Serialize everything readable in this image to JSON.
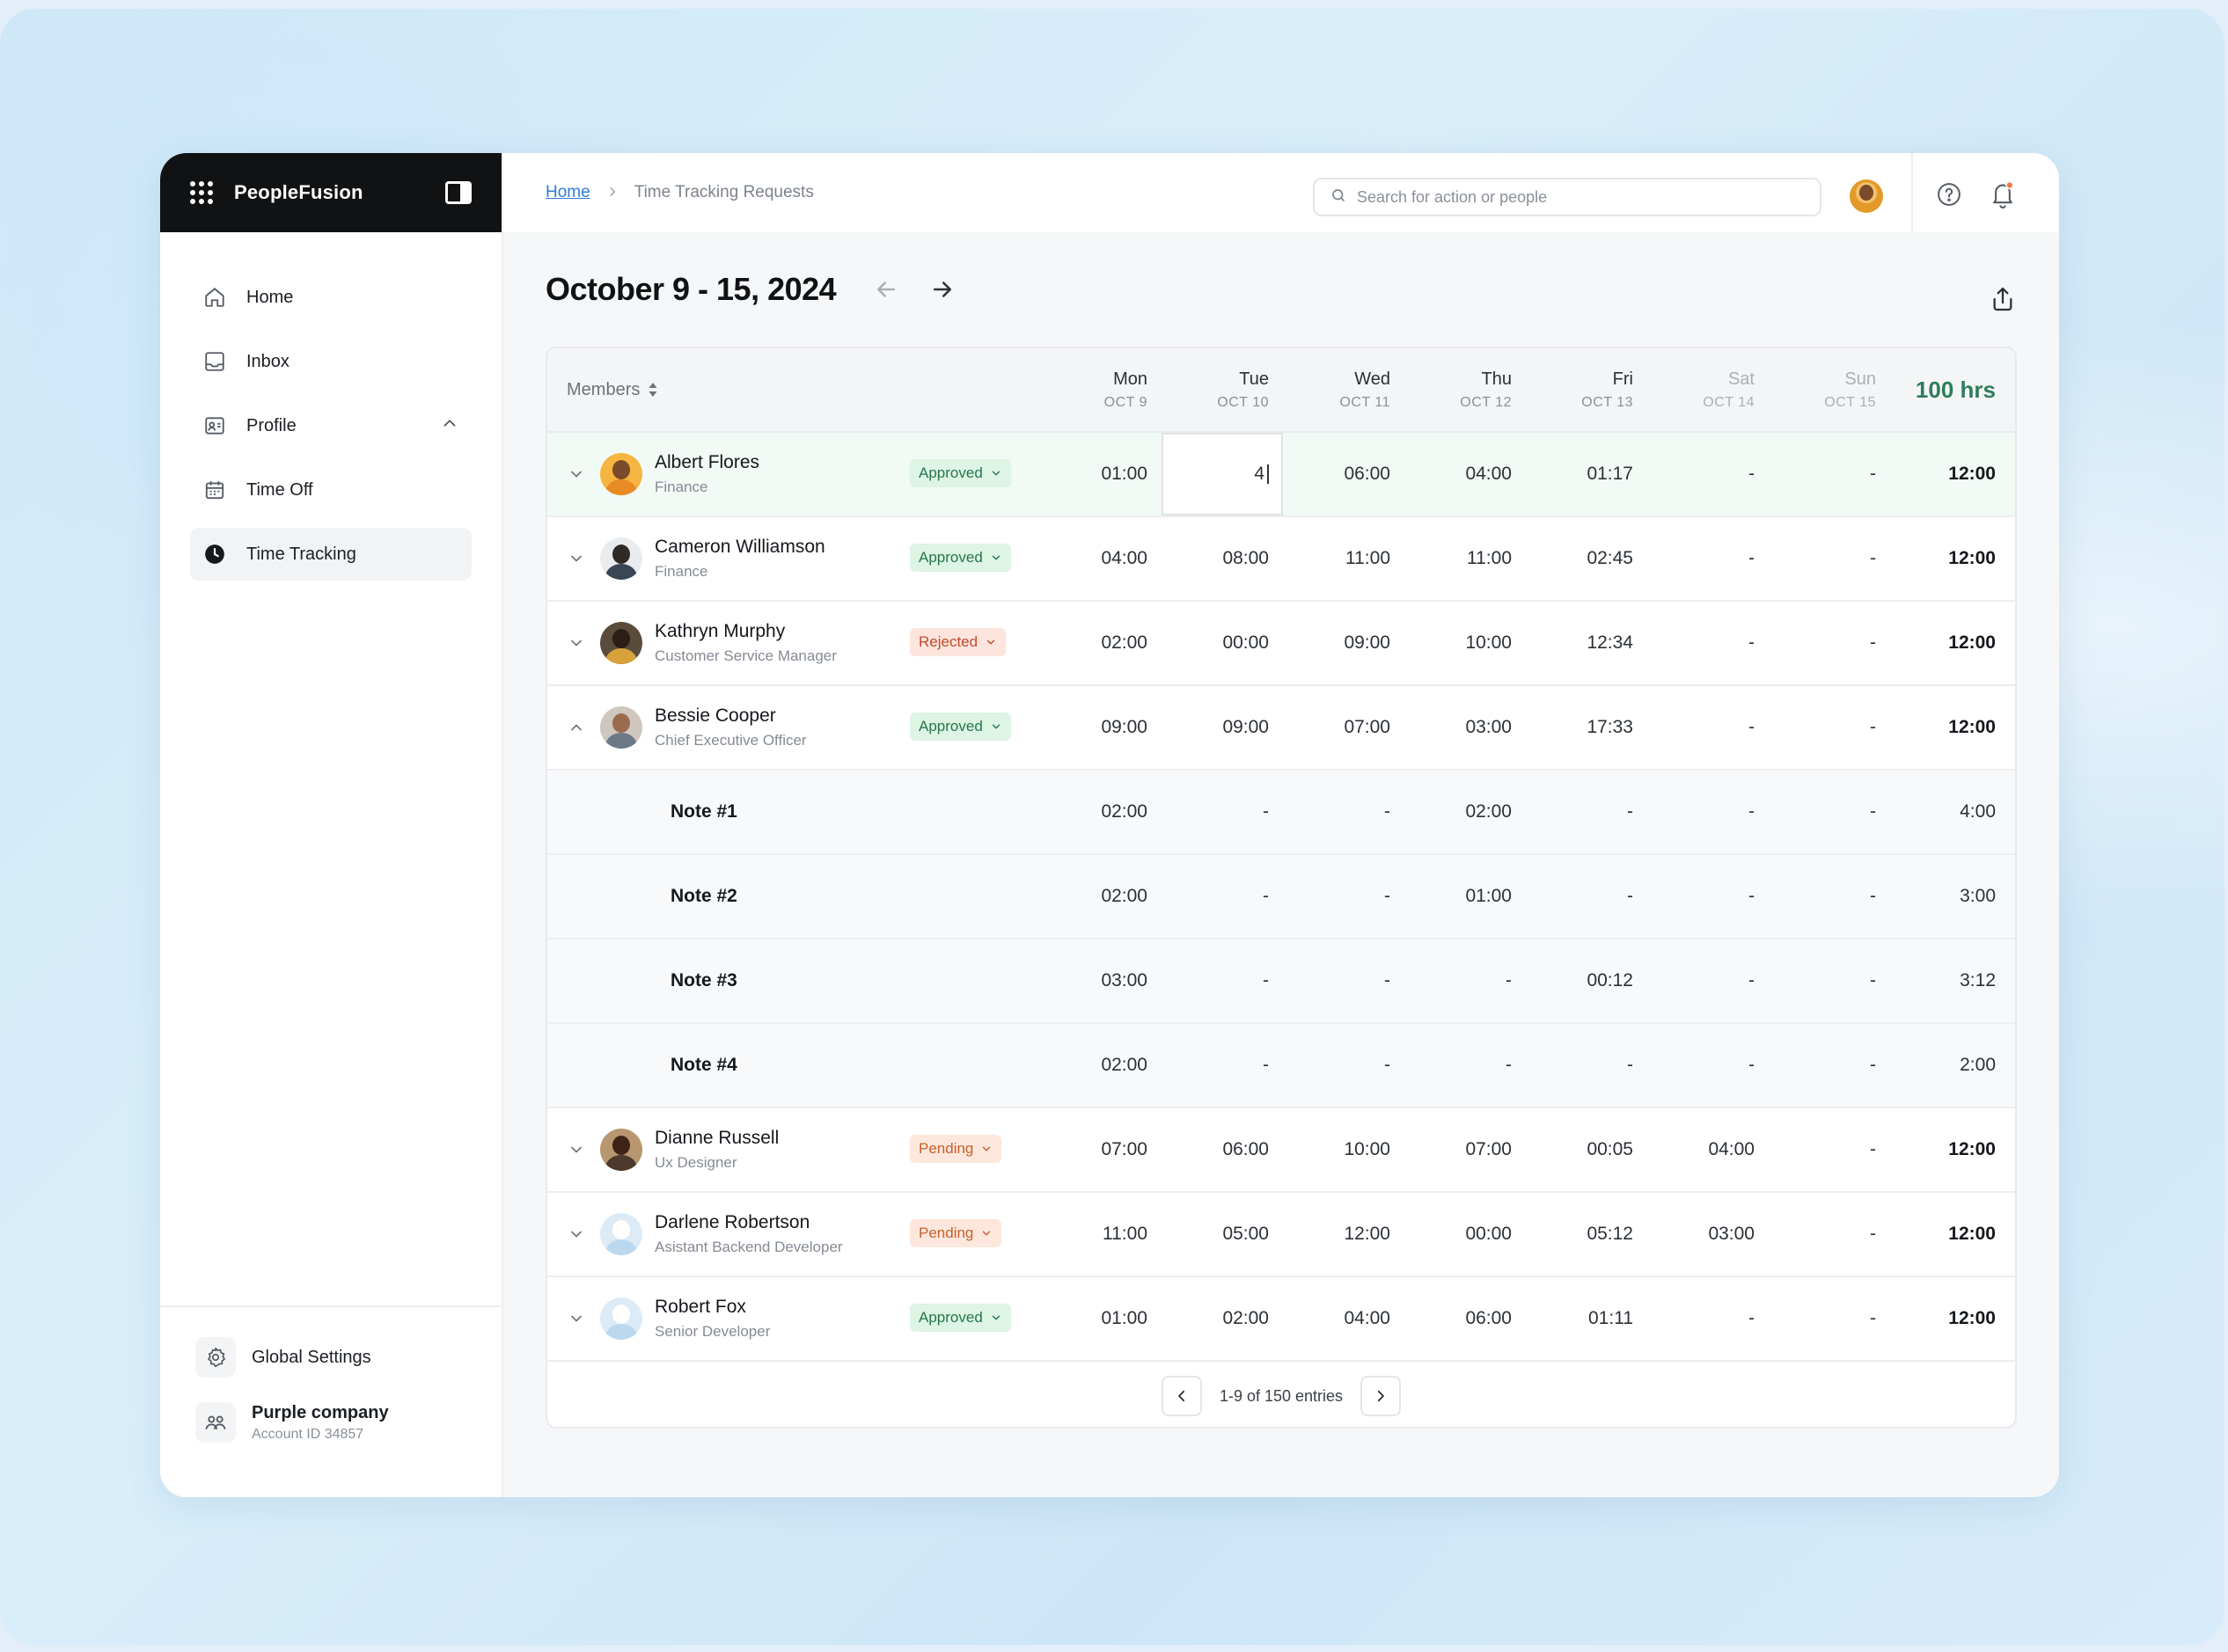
{
  "app": {
    "name": "PeopleFusion"
  },
  "sidebar": {
    "items": [
      {
        "label": "Home",
        "icon": "home-icon"
      },
      {
        "label": "Inbox",
        "icon": "inbox-icon"
      },
      {
        "label": "Profile",
        "icon": "profile-card-icon",
        "expanded": true
      },
      {
        "label": "Time Off",
        "icon": "calendar-icon"
      },
      {
        "label": "Time Tracking",
        "icon": "clock-icon",
        "active": true
      }
    ],
    "footer": {
      "settings_label": "Global Settings",
      "company_name": "Purple company",
      "account_id": "Account ID 34857"
    }
  },
  "header": {
    "breadcrumb": {
      "home": "Home",
      "current": "Time Tracking Requests"
    },
    "search_placeholder": "Search for action or people"
  },
  "page": {
    "title": "October 9 - 15, 2024"
  },
  "table": {
    "members_header": "Members",
    "total_header": "100 hrs",
    "days": [
      {
        "day": "Mon",
        "date": "OCT 9",
        "weekend": false
      },
      {
        "day": "Tue",
        "date": "OCT 10",
        "weekend": false
      },
      {
        "day": "Wed",
        "date": "OCT 11",
        "weekend": false
      },
      {
        "day": "Thu",
        "date": "OCT 12",
        "weekend": false
      },
      {
        "day": "Fri",
        "date": "OCT 13",
        "weekend": false
      },
      {
        "day": "Sat",
        "date": "OCT 14",
        "weekend": true
      },
      {
        "day": "Sun",
        "date": "OCT 15",
        "weekend": true
      }
    ],
    "rows": [
      {
        "type": "member",
        "name": "Albert Flores",
        "role": "Finance",
        "status": "Approved",
        "hours": [
          "01:00",
          "4",
          "06:00",
          "04:00",
          "01:17",
          "-",
          "-"
        ],
        "total": "12:00",
        "highlight": true,
        "editing_day": 1
      },
      {
        "type": "member",
        "name": "Cameron Williamson",
        "role": "Finance",
        "status": "Approved",
        "hours": [
          "04:00",
          "08:00",
          "11:00",
          "11:00",
          "02:45",
          "-",
          "-"
        ],
        "total": "12:00"
      },
      {
        "type": "member",
        "name": "Kathryn Murphy",
        "role": "Customer Service Manager",
        "status": "Rejected",
        "hours": [
          "02:00",
          "00:00",
          "09:00",
          "10:00",
          "12:34",
          "-",
          "-"
        ],
        "total": "12:00"
      },
      {
        "type": "member",
        "name": "Bessie Cooper",
        "role": "Chief Executive Officer",
        "status": "Approved",
        "hours": [
          "09:00",
          "09:00",
          "07:00",
          "03:00",
          "17:33",
          "-",
          "-"
        ],
        "total": "12:00",
        "expanded": true
      },
      {
        "type": "note",
        "name": "Note #1",
        "hours": [
          "02:00",
          "-",
          "-",
          "02:00",
          "-",
          "-",
          "-"
        ],
        "total": "4:00"
      },
      {
        "type": "note",
        "name": "Note #2",
        "hours": [
          "02:00",
          "-",
          "-",
          "01:00",
          "-",
          "-",
          "-"
        ],
        "total": "3:00"
      },
      {
        "type": "note",
        "name": "Note #3",
        "hours": [
          "03:00",
          "-",
          "-",
          "-",
          "00:12",
          "-",
          "-"
        ],
        "total": "3:12"
      },
      {
        "type": "note",
        "name": "Note #4",
        "hours": [
          "02:00",
          "-",
          "-",
          "-",
          "-",
          "-",
          "-"
        ],
        "total": "2:00"
      },
      {
        "type": "member",
        "name": "Dianne Russell",
        "role": "Ux Designer",
        "status": "Pending",
        "hours": [
          "07:00",
          "06:00",
          "10:00",
          "07:00",
          "00:05",
          "04:00",
          "-"
        ],
        "total": "12:00"
      },
      {
        "type": "member",
        "name": "Darlene Robertson",
        "role": "Asistant Backend Developer",
        "status": "Pending",
        "hours": [
          "11:00",
          "05:00",
          "12:00",
          "00:00",
          "05:12",
          "03:00",
          "-"
        ],
        "total": "12:00"
      },
      {
        "type": "member",
        "name": "Robert Fox",
        "role": "Senior Developer",
        "status": "Approved",
        "hours": [
          "01:00",
          "02:00",
          "04:00",
          "06:00",
          "01:11",
          "-",
          "-"
        ],
        "total": "12:00"
      }
    ]
  },
  "pagination": {
    "label": "1-9 of 150 entries"
  },
  "colors": {
    "accent_green": "#2e7d5b",
    "approved_bg": "#def4e5",
    "rejected_bg": "#fde5de",
    "pending_bg": "#fde7dc",
    "link_blue": "#2f7bd6"
  }
}
